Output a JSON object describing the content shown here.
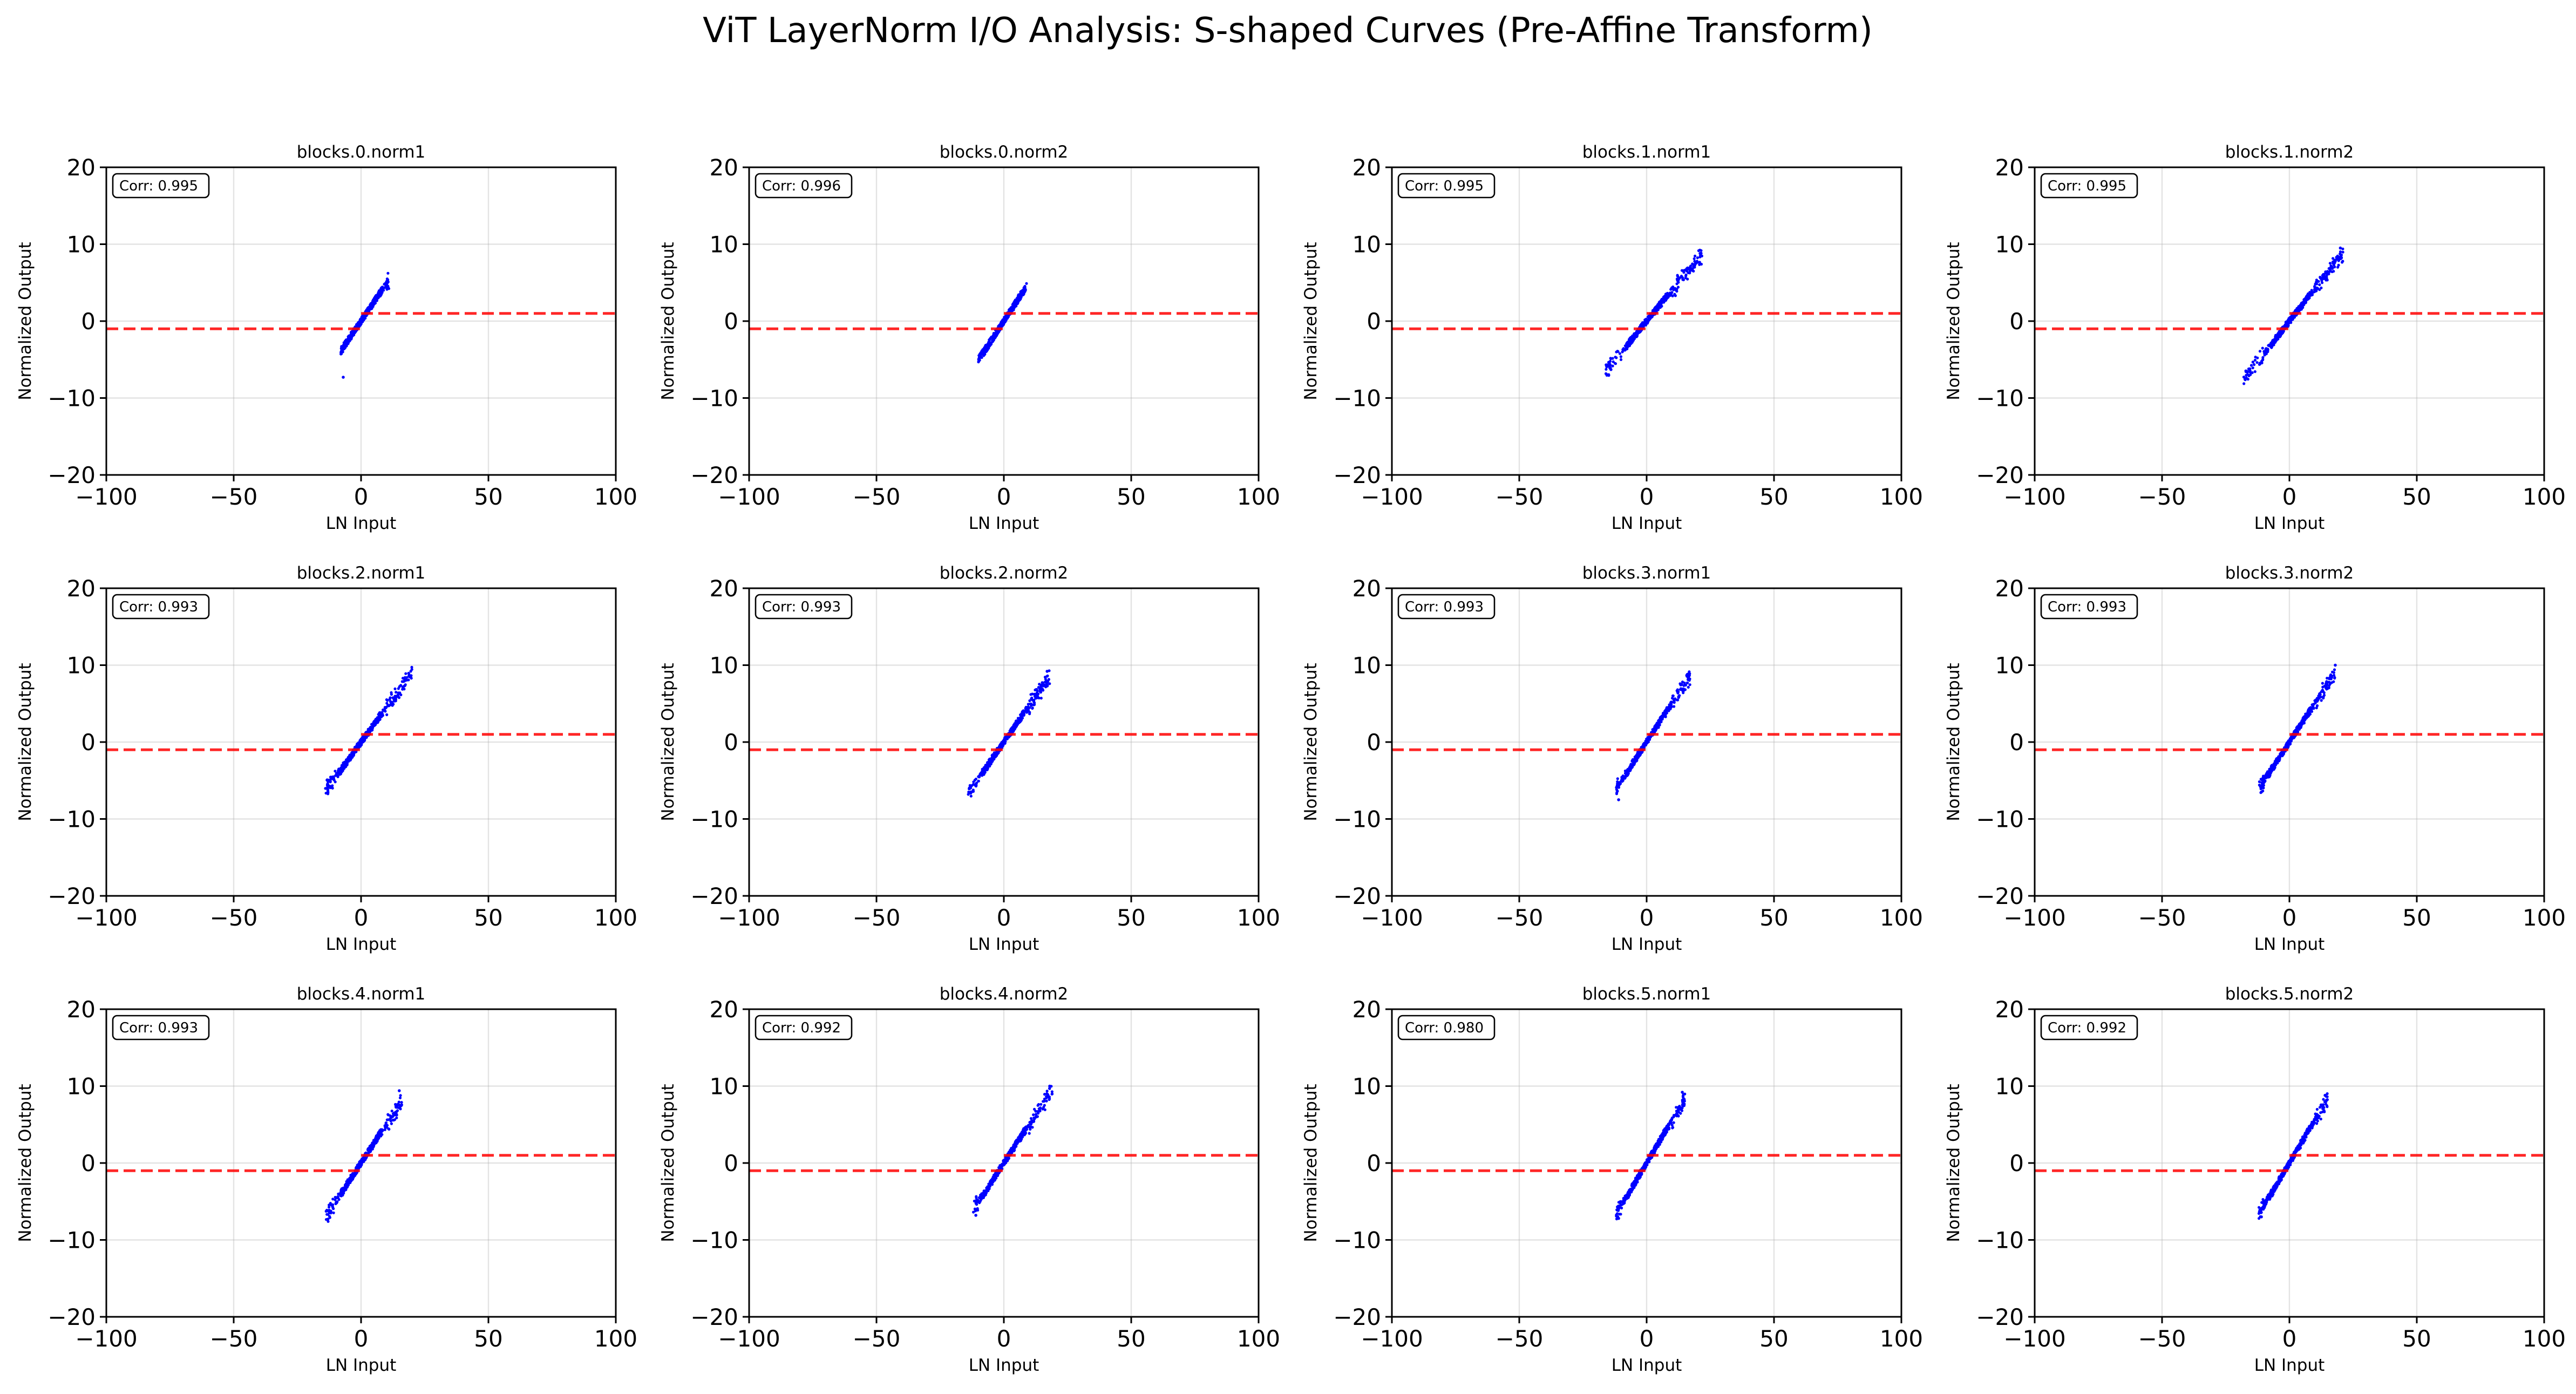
{
  "figure": {
    "title": "ViT LayerNorm I/O Analysis: S-shaped Curves (Pre-Affine Transform)"
  },
  "colors": {
    "points": "#0000ff",
    "reference_line": "#ff0000"
  },
  "chart_data": [
    {
      "type": "scatter",
      "title": "blocks.0.norm1",
      "annotation": "Corr: 0.995",
      "xlabel": "LN Input",
      "ylabel": "Normalized Output",
      "xlim": [
        -100,
        100
      ],
      "ylim": [
        -20,
        20
      ],
      "xticks": [
        -100,
        -50,
        0,
        50,
        100
      ],
      "yticks": [
        -20,
        -10,
        0,
        10,
        20
      ],
      "grid": true,
      "x_range": [
        -8,
        11
      ],
      "slope": 0.48,
      "y_outliers": [
        [
          -7,
          -7.3
        ]
      ],
      "reference": "dashed red sign step (-1 for x<0, +1 for x>0)"
    },
    {
      "type": "scatter",
      "title": "blocks.0.norm2",
      "annotation": "Corr: 0.996",
      "xlabel": "LN Input",
      "ylabel": "Normalized Output",
      "xlim": [
        -100,
        100
      ],
      "ylim": [
        -20,
        20
      ],
      "xticks": [
        -100,
        -50,
        0,
        50,
        100
      ],
      "yticks": [
        -20,
        -10,
        0,
        10,
        20
      ],
      "grid": true,
      "x_range": [
        -10,
        9
      ],
      "slope": 0.5,
      "y_outliers": [],
      "reference": "dashed red sign step (-1 for x<0, +1 for x>0)"
    },
    {
      "type": "scatter",
      "title": "blocks.1.norm1",
      "annotation": "Corr: 0.995",
      "xlabel": "LN Input",
      "ylabel": "Normalized Output",
      "xlim": [
        -100,
        100
      ],
      "ylim": [
        -20,
        20
      ],
      "xticks": [
        -100,
        -50,
        0,
        50,
        100
      ],
      "yticks": [
        -20,
        -10,
        0,
        10,
        20
      ],
      "grid": true,
      "x_range": [
        -16,
        22
      ],
      "slope": 0.4,
      "y_outliers": [
        [
          -14,
          -6.3
        ],
        [
          21,
          8.8
        ]
      ],
      "reference": "dashed red sign step (-1 for x<0, +1 for x>0)"
    },
    {
      "type": "scatter",
      "title": "blocks.1.norm2",
      "annotation": "Corr: 0.995",
      "xlabel": "LN Input",
      "ylabel": "Normalized Output",
      "xlim": [
        -100,
        100
      ],
      "ylim": [
        -20,
        20
      ],
      "xticks": [
        -100,
        -50,
        0,
        50,
        100
      ],
      "yticks": [
        -20,
        -10,
        0,
        10,
        20
      ],
      "grid": true,
      "x_range": [
        -18,
        21
      ],
      "slope": 0.42,
      "y_outliers": [
        [
          -17,
          -6.5
        ],
        [
          20,
          9.5
        ]
      ],
      "reference": "dashed red sign step (-1 for x<0, +1 for x>0)"
    },
    {
      "type": "scatter",
      "title": "blocks.2.norm1",
      "annotation": "Corr: 0.993",
      "xlabel": "LN Input",
      "ylabel": "Normalized Output",
      "xlim": [
        -100,
        100
      ],
      "ylim": [
        -20,
        20
      ],
      "xticks": [
        -100,
        -50,
        0,
        50,
        100
      ],
      "yticks": [
        -20,
        -10,
        0,
        10,
        20
      ],
      "grid": true,
      "x_range": [
        -14,
        20
      ],
      "slope": 0.45,
      "y_outliers": [
        [
          -13,
          -6.5
        ],
        [
          19,
          8.5
        ]
      ],
      "reference": "dashed red sign step (-1 for x<0, +1 for x>0)"
    },
    {
      "type": "scatter",
      "title": "blocks.2.norm2",
      "annotation": "Corr: 0.993",
      "xlabel": "LN Input",
      "ylabel": "Normalized Output",
      "xlim": [
        -100,
        100
      ],
      "ylim": [
        -20,
        20
      ],
      "xticks": [
        -100,
        -50,
        0,
        50,
        100
      ],
      "yticks": [
        -20,
        -10,
        0,
        10,
        20
      ],
      "grid": true,
      "x_range": [
        -14,
        18
      ],
      "slope": 0.47,
      "y_outliers": [
        [
          -13,
          -6.5
        ],
        [
          17,
          9.2
        ]
      ],
      "reference": "dashed red sign step (-1 for x<0, +1 for x>0)"
    },
    {
      "type": "scatter",
      "title": "blocks.3.norm1",
      "annotation": "Corr: 0.993",
      "xlabel": "LN Input",
      "ylabel": "Normalized Output",
      "xlim": [
        -100,
        100
      ],
      "ylim": [
        -20,
        20
      ],
      "xticks": [
        -100,
        -50,
        0,
        50,
        100
      ],
      "yticks": [
        -20,
        -10,
        0,
        10,
        20
      ],
      "grid": true,
      "x_range": [
        -12,
        17
      ],
      "slope": 0.5,
      "y_outliers": [
        [
          -11,
          -7.5
        ],
        [
          16,
          8.8
        ]
      ],
      "reference": "dashed red sign step (-1 for x<0, +1 for x>0)"
    },
    {
      "type": "scatter",
      "title": "blocks.3.norm2",
      "annotation": "Corr: 0.993",
      "xlabel": "LN Input",
      "ylabel": "Normalized Output",
      "xlim": [
        -100,
        100
      ],
      "ylim": [
        -20,
        20
      ],
      "xticks": [
        -100,
        -50,
        0,
        50,
        100
      ],
      "yticks": [
        -20,
        -10,
        0,
        10,
        20
      ],
      "grid": true,
      "x_range": [
        -12,
        18
      ],
      "slope": 0.5,
      "y_outliers": [
        [
          -11,
          -6.5
        ],
        [
          18,
          10
        ]
      ],
      "reference": "dashed red sign step (-1 for x<0, +1 for x>0)"
    },
    {
      "type": "scatter",
      "title": "blocks.4.norm1",
      "annotation": "Corr: 0.993",
      "xlabel": "LN Input",
      "ylabel": "Normalized Output",
      "xlim": [
        -100,
        100
      ],
      "ylim": [
        -20,
        20
      ],
      "xticks": [
        -100,
        -50,
        0,
        50,
        100
      ],
      "yticks": [
        -20,
        -10,
        0,
        10,
        20
      ],
      "grid": true,
      "x_range": [
        -14,
        16
      ],
      "slope": 0.5,
      "y_outliers": [
        [
          -13,
          -7.3
        ],
        [
          15,
          9.4
        ]
      ],
      "reference": "dashed red sign step (-1 for x<0, +1 for x>0)"
    },
    {
      "type": "scatter",
      "title": "blocks.4.norm2",
      "annotation": "Corr: 0.992",
      "xlabel": "LN Input",
      "ylabel": "Normalized Output",
      "xlim": [
        -100,
        100
      ],
      "ylim": [
        -20,
        20
      ],
      "xticks": [
        -100,
        -50,
        0,
        50,
        100
      ],
      "yticks": [
        -20,
        -10,
        0,
        10,
        20
      ],
      "grid": true,
      "x_range": [
        -12,
        19
      ],
      "slope": 0.5,
      "y_outliers": [
        [
          -11,
          -6.8
        ],
        [
          18,
          10
        ]
      ],
      "reference": "dashed red sign step (-1 for x<0, +1 for x>0)"
    },
    {
      "type": "scatter",
      "title": "blocks.5.norm1",
      "annotation": "Corr: 0.980",
      "xlabel": "LN Input",
      "ylabel": "Normalized Output",
      "xlim": [
        -100,
        100
      ],
      "ylim": [
        -20,
        20
      ],
      "xticks": [
        -100,
        -50,
        0,
        50,
        100
      ],
      "yticks": [
        -20,
        -10,
        0,
        10,
        20
      ],
      "grid": true,
      "x_range": [
        -12,
        15
      ],
      "slope": 0.55,
      "y_outliers": [
        [
          -11,
          -7.2
        ],
        [
          14,
          9.2
        ]
      ],
      "reference": "dashed red sign step (-1 for x<0, +1 for x>0)"
    },
    {
      "type": "scatter",
      "title": "blocks.5.norm2",
      "annotation": "Corr: 0.992",
      "xlabel": "LN Input",
      "ylabel": "Normalized Output",
      "xlim": [
        -100,
        100
      ],
      "ylim": [
        -20,
        20
      ],
      "xticks": [
        -100,
        -50,
        0,
        50,
        100
      ],
      "yticks": [
        -20,
        -10,
        0,
        10,
        20
      ],
      "grid": true,
      "x_range": [
        -12,
        15
      ],
      "slope": 0.55,
      "y_outliers": [
        [
          -11,
          -7
        ],
        [
          14,
          8.8
        ]
      ],
      "reference": "dashed red sign step (-1 for x<0, +1 for x>0)"
    }
  ]
}
